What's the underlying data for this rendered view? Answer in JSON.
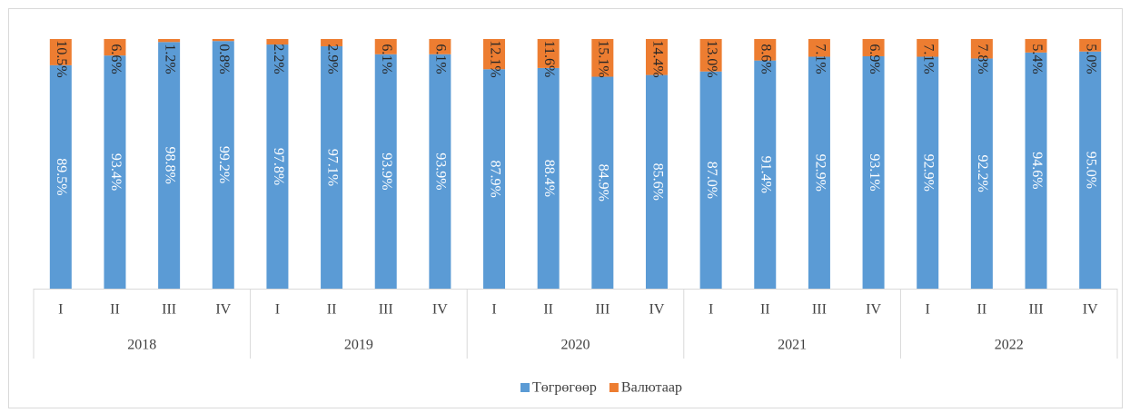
{
  "chart_data": {
    "type": "stacked_bar",
    "categories": [
      "I",
      "II",
      "III",
      "IV",
      "I",
      "II",
      "III",
      "IV",
      "I",
      "II",
      "III",
      "IV",
      "I",
      "II",
      "III",
      "IV",
      "I",
      "II",
      "III",
      "IV"
    ],
    "groups": [
      "2018",
      "2019",
      "2020",
      "2021",
      "2022"
    ],
    "ylim": [
      0,
      100
    ],
    "legend": "bottom",
    "series": [
      {
        "name": "Төгрөгөөр",
        "color": "#5b9bd5",
        "values": [
          89.5,
          93.4,
          98.8,
          99.2,
          97.8,
          97.1,
          93.9,
          93.9,
          87.9,
          88.4,
          84.9,
          85.6,
          87.0,
          91.4,
          92.9,
          93.1,
          92.9,
          92.2,
          94.6,
          95.0
        ],
        "value_labels": [
          "89.5%",
          "93.4%",
          "98.8%",
          "99.2%",
          "97.8%",
          "97.1%",
          "93.9%",
          "93.9%",
          "87.9%",
          "88.4%",
          "84.9%",
          "85.6%",
          "87.0%",
          "91.4%",
          "92.9%",
          "93.1%",
          "92.9%",
          "92.2%",
          "94.6%",
          "95.0%"
        ]
      },
      {
        "name": "Валютаар",
        "color": "#ed7d31",
        "values": [
          10.5,
          6.6,
          1.2,
          0.8,
          2.2,
          2.9,
          6.1,
          6.1,
          12.1,
          11.6,
          15.1,
          14.4,
          13.0,
          8.6,
          7.1,
          6.9,
          7.1,
          7.8,
          5.4,
          5.0
        ],
        "value_labels": [
          "10.5%",
          "6.6%",
          "1.2%",
          "0.8%",
          "2.2%",
          "2.9%",
          "6.1%",
          "6.1%",
          "12.1%",
          "11.6%",
          "15.1%",
          "14.4%",
          "13.0%",
          "8.6%",
          "7.1%",
          "6.9%",
          "7.1%",
          "7.8%",
          "5.4%",
          "5.0%"
        ]
      }
    ]
  }
}
